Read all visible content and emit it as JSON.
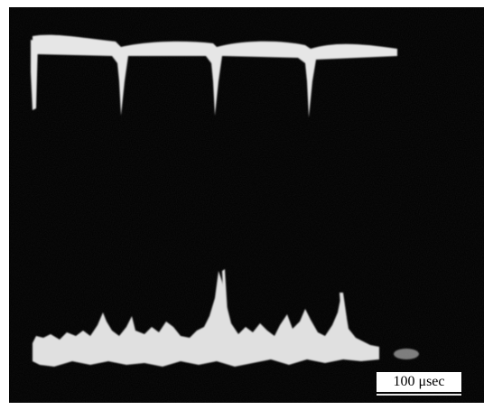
{
  "image": {
    "type": "oscilloscope-photograph",
    "background_color": "#000000",
    "frame_color": "#ffffff",
    "trace_color": "#e8e8e8",
    "traces": [
      {
        "name": "upper-trace",
        "description_shape": "square pulse train with four negative dips"
      },
      {
        "name": "lower-trace",
        "description_shape": "noisy baseline with narrow spikes"
      }
    ]
  },
  "scale": {
    "label": "100 μsec"
  }
}
